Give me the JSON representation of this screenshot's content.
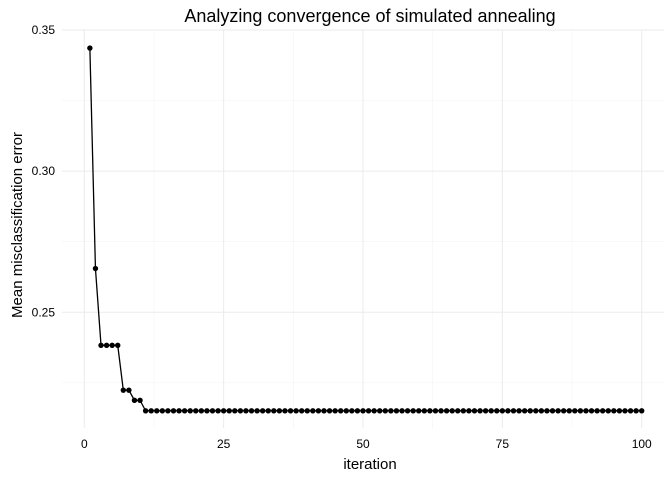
{
  "chart_data": {
    "type": "line",
    "title": "Analyzing convergence of simulated annealing",
    "xlabel": "iteration",
    "ylabel": "Mean misclassification error",
    "xlim": [
      -4,
      104
    ],
    "ylim": [
      0.209,
      0.35
    ],
    "x_ticks": [
      0,
      25,
      50,
      75,
      100
    ],
    "y_ticks": [
      0.25,
      0.3,
      0.35
    ],
    "x_tick_labels": [
      "0",
      "25",
      "50",
      "75",
      "100"
    ],
    "y_tick_labels": [
      "0.25",
      "0.30",
      "0.35"
    ],
    "grid": true,
    "markers": true,
    "series": [
      {
        "x": [
          1,
          2,
          3,
          4,
          5,
          6,
          7,
          8,
          9,
          10,
          11,
          12,
          13,
          14,
          15,
          16,
          17,
          18,
          19,
          20,
          21,
          22,
          23,
          24,
          25,
          26,
          27,
          28,
          29,
          30,
          31,
          32,
          33,
          34,
          35,
          36,
          37,
          38,
          39,
          40,
          41,
          42,
          43,
          44,
          45,
          46,
          47,
          48,
          49,
          50,
          51,
          52,
          53,
          54,
          55,
          56,
          57,
          58,
          59,
          60,
          61,
          62,
          63,
          64,
          65,
          66,
          67,
          68,
          69,
          70,
          71,
          72,
          73,
          74,
          75,
          76,
          77,
          78,
          79,
          80,
          81,
          82,
          83,
          84,
          85,
          86,
          87,
          88,
          89,
          90,
          91,
          92,
          93,
          94,
          95,
          96,
          97,
          98,
          99,
          100
        ],
        "y": [
          0.3436,
          0.2655,
          0.2383,
          0.2383,
          0.2383,
          0.2383,
          0.2224,
          0.2224,
          0.2188,
          0.2188,
          0.2151,
          0.2151,
          0.2151,
          0.2151,
          0.2151,
          0.2151,
          0.2151,
          0.2151,
          0.2151,
          0.2151,
          0.2151,
          0.2151,
          0.2151,
          0.2151,
          0.2151,
          0.2151,
          0.2151,
          0.2151,
          0.2151,
          0.2151,
          0.2151,
          0.2151,
          0.2151,
          0.2151,
          0.2151,
          0.2151,
          0.2151,
          0.2151,
          0.2151,
          0.2151,
          0.2151,
          0.2151,
          0.2151,
          0.2151,
          0.2151,
          0.2151,
          0.2151,
          0.2151,
          0.2151,
          0.2151,
          0.2151,
          0.2151,
          0.2151,
          0.2151,
          0.2151,
          0.2151,
          0.2151,
          0.2151,
          0.2151,
          0.2151,
          0.2151,
          0.2151,
          0.2151,
          0.2151,
          0.2151,
          0.2151,
          0.2151,
          0.2151,
          0.2151,
          0.2151,
          0.2151,
          0.2151,
          0.2151,
          0.2151,
          0.2151,
          0.2151,
          0.2151,
          0.2151,
          0.2151,
          0.2151,
          0.2151,
          0.2151,
          0.2151,
          0.2151,
          0.2151,
          0.2151,
          0.2151,
          0.2151,
          0.2151,
          0.2151,
          0.2151,
          0.2151,
          0.2151,
          0.2151,
          0.2151,
          0.2151,
          0.2151,
          0.2151,
          0.2151,
          0.2151
        ]
      }
    ]
  }
}
